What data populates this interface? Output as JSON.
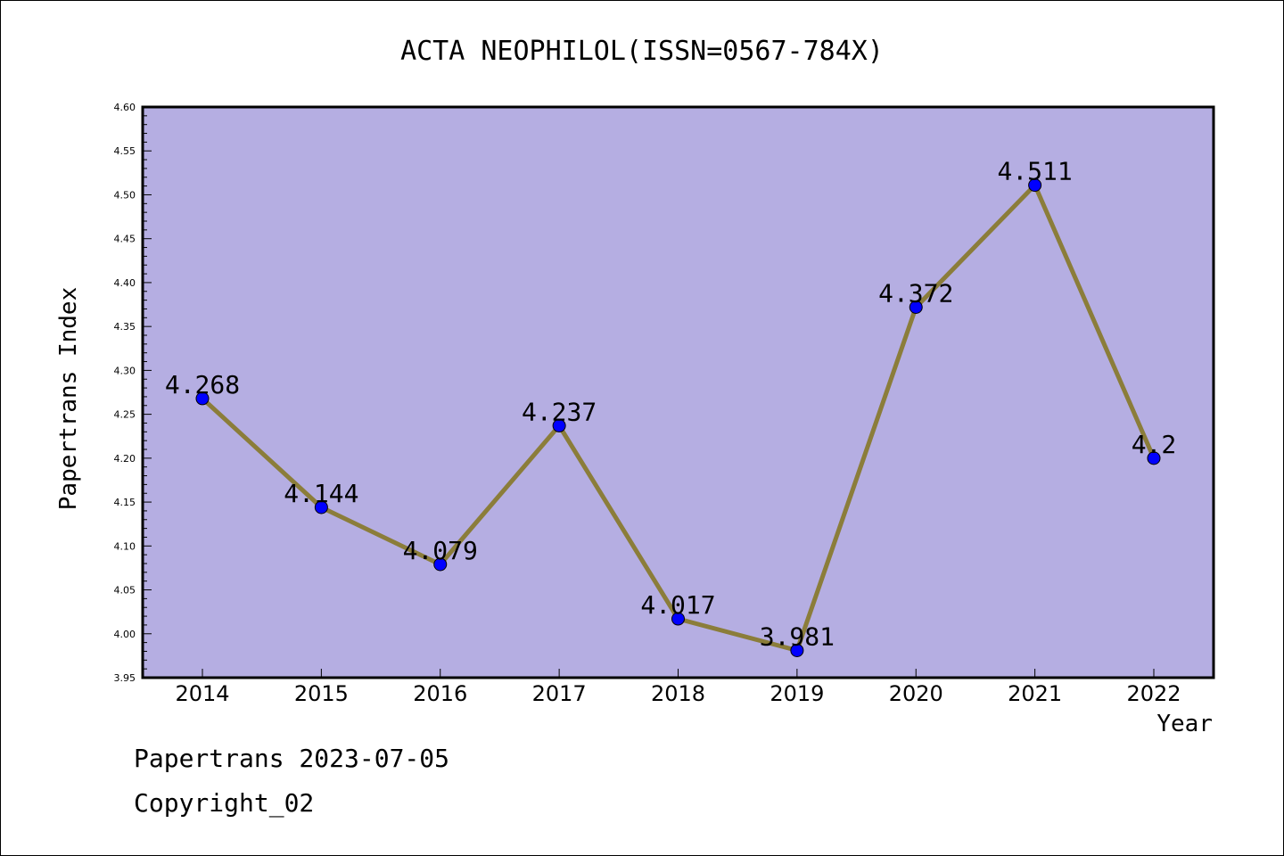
{
  "chart_data": {
    "type": "line",
    "title": "ACTA NEOPHILOL(ISSN=0567-784X)",
    "xlabel": "Year",
    "ylabel": "Papertrans Index",
    "categories": [
      "2014",
      "2015",
      "2016",
      "2017",
      "2018",
      "2019",
      "2020",
      "2021",
      "2022"
    ],
    "series": [
      {
        "values": [
          4.268,
          4.144,
          4.079,
          4.237,
          4.017,
          3.981,
          4.372,
          4.511,
          4.2
        ],
        "labels": [
          "4.268",
          "4.144",
          "4.079",
          "4.237",
          "4.017",
          "3.981",
          "4.372",
          "4.511",
          "4.2"
        ],
        "line_color": "#8b7d3a",
        "marker_color": "#0000ff"
      }
    ],
    "ylim": [
      3.95,
      4.6
    ],
    "yticks": [
      "3.95",
      "4.00",
      "4.05",
      "4.10",
      "4.15",
      "4.20",
      "4.25",
      "4.30",
      "4.35",
      "4.40",
      "4.45",
      "4.50",
      "4.55",
      "4.60"
    ],
    "plot_background": "#b5aee2",
    "grid": false,
    "legend": "none"
  },
  "footer": {
    "line1": "Papertrans 2023-07-05",
    "line2": "Copyright_02"
  }
}
